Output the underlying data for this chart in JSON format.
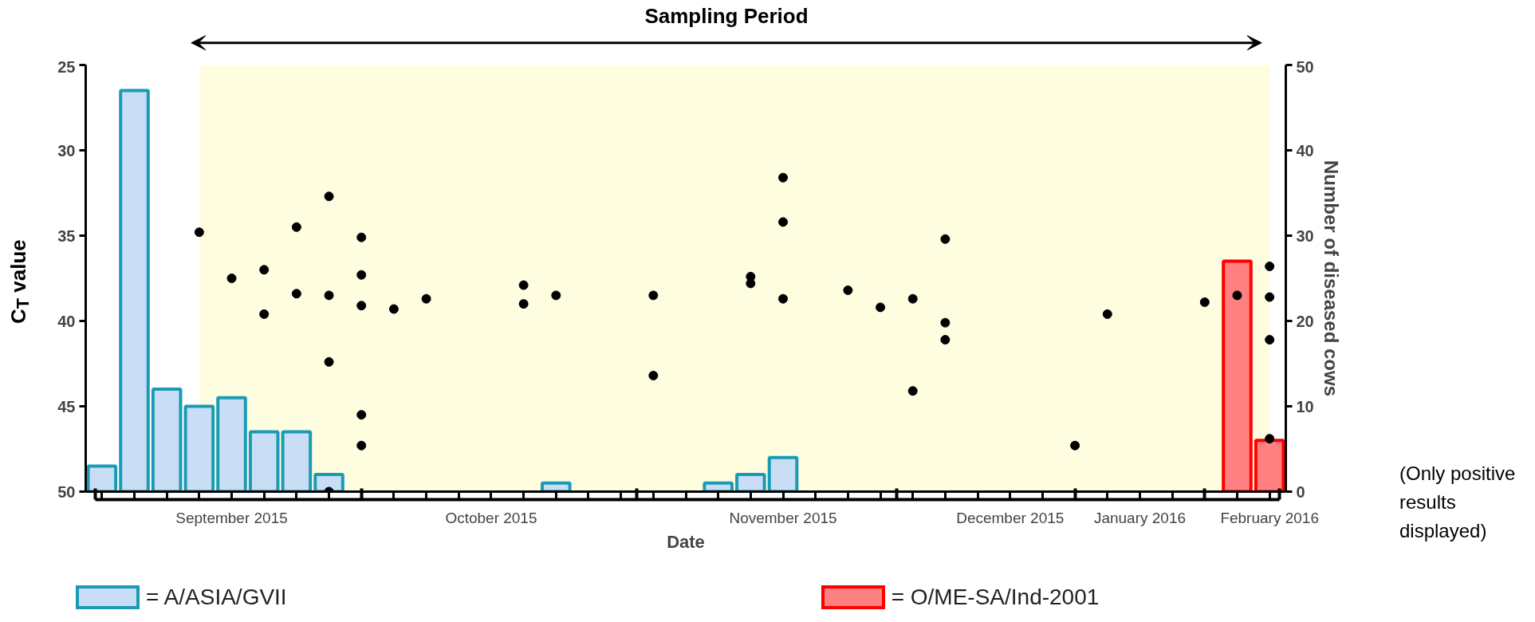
{
  "chart_data": {
    "type": "bar",
    "title": "Sampling Period",
    "xlabel": "Date",
    "ylabel": "C$_{T}$ value",
    "y2label": "Number of diseased cows",
    "categories": [
      null,
      null,
      null,
      null,
      "September 2015",
      null,
      null,
      null,
      null,
      null,
      null,
      null,
      "October 2015",
      null,
      null,
      null,
      null,
      null,
      null,
      null,
      null,
      "November 2015",
      null,
      null,
      null,
      null,
      null,
      null,
      "December 2015",
      null,
      null,
      null,
      "January 2016",
      null,
      null,
      null,
      "February 2016"
    ],
    "ylim": [
      50,
      25
    ],
    "yticks": [
      25,
      30,
      35,
      40,
      45,
      50
    ],
    "y2lim": [
      0,
      50
    ],
    "y2ticks": [
      0,
      10,
      20,
      30,
      40,
      50
    ],
    "series": [
      {
        "name": "= A/ASIA/GVII",
        "axis": "y2",
        "color": "#c9ddf5",
        "values": [
          3,
          47,
          12,
          10,
          11,
          7,
          7,
          2,
          null,
          null,
          null,
          null,
          null,
          null,
          1,
          null,
          null,
          null,
          null,
          1,
          2,
          4,
          null,
          null,
          null,
          null,
          null,
          null,
          null,
          null,
          null,
          null,
          null,
          null,
          null,
          null,
          null
        ]
      },
      {
        "name": "= O/ME-SA/Ind-2001",
        "axis": "y2",
        "color": "#ff8080",
        "values": [
          null,
          null,
          null,
          null,
          null,
          null,
          null,
          null,
          null,
          null,
          null,
          null,
          null,
          null,
          null,
          null,
          null,
          null,
          null,
          null,
          null,
          null,
          null,
          null,
          null,
          null,
          null,
          null,
          null,
          null,
          null,
          null,
          null,
          null,
          null,
          27,
          6
        ]
      },
      {
        "type": "scatter",
        "color": "#000000",
        "values": [
          null,
          null,
          null,
          34.8,
          37.5,
          37.0,
          34.5,
          32.7,
          35.1,
          39.3,
          38.7,
          null,
          null,
          37.9,
          38.5,
          null,
          null,
          38.5,
          null,
          null,
          37.4,
          31.6,
          null,
          38.2,
          39.2,
          38.7,
          35.2,
          null,
          null,
          null,
          47.3,
          39.6,
          null,
          null,
          38.9,
          38.5,
          36.8
        ]
      },
      {
        "type": "scatter",
        "color": "#000000",
        "values": [
          null,
          null,
          null,
          null,
          null,
          39.6,
          38.4,
          38.5,
          37.3,
          null,
          null,
          null,
          null,
          39.0,
          null,
          null,
          null,
          43.2,
          null,
          null,
          37.8,
          34.2,
          null,
          null,
          null,
          44.1,
          40.1,
          null,
          null,
          null,
          null,
          null,
          null,
          null,
          null,
          null,
          38.6
        ]
      },
      {
        "type": "scatter",
        "color": "#000000",
        "values": [
          null,
          null,
          null,
          null,
          null,
          null,
          null,
          42.4,
          39.1,
          null,
          null,
          null,
          null,
          null,
          null,
          null,
          null,
          null,
          null,
          null,
          null,
          38.7,
          null,
          null,
          null,
          null,
          41.1,
          null,
          null,
          null,
          null,
          null,
          null,
          null,
          null,
          null,
          41.1
        ]
      },
      {
        "type": "scatter",
        "color": "#000000",
        "values": [
          null,
          null,
          null,
          null,
          null,
          null,
          null,
          50,
          45.5,
          null,
          null,
          null,
          null,
          null,
          null,
          null,
          null,
          null,
          null,
          null,
          null,
          null,
          null,
          null,
          null,
          null,
          null,
          null,
          null,
          null,
          null,
          null,
          null,
          null,
          null,
          null,
          46.9
        ]
      },
      {
        "type": "scatter",
        "color": "#000000",
        "values": [
          null,
          null,
          null,
          null,
          null,
          null,
          null,
          null,
          47.3,
          null,
          null,
          null,
          null,
          null,
          null,
          null,
          null,
          null,
          null,
          null,
          null,
          null,
          null,
          null,
          null,
          null,
          null,
          null,
          null,
          null,
          null,
          null,
          null,
          null,
          null,
          null,
          null
        ]
      }
    ],
    "annotations": [
      "(Only positive results displayed)"
    ],
    "legend": "bottom",
    "grid": false,
    "marker": "circle"
  }
}
